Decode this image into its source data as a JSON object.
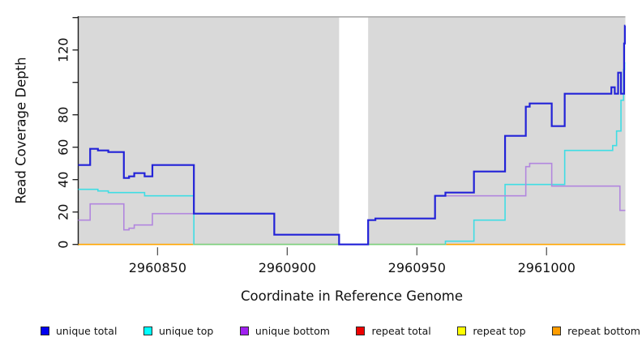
{
  "figure": {
    "xlabel": "Coordinate in Reference Genome",
    "ylabel": "Read Coverage Depth"
  },
  "chart_data": {
    "type": "line",
    "step": true,
    "title": "",
    "xlabel": "Coordinate in Reference Genome",
    "ylabel": "Read Coverage Depth",
    "xlim": [
      2960819.4,
      2961030.4
    ],
    "ylim": [
      0,
      140.85
    ],
    "background": "#D9D9D9",
    "grid": false,
    "legend_position": "bottom",
    "gap_region": {
      "x_start": 2960920,
      "x_end": 2960931.2
    },
    "x_ticks": [
      {
        "value": 2960850,
        "label": "2960850"
      },
      {
        "value": 2960900,
        "label": "2960900"
      },
      {
        "value": 2960950,
        "label": "2960950"
      },
      {
        "value": 2961000,
        "label": "2961000"
      }
    ],
    "y_ticks": [
      {
        "value": 0,
        "label": "0"
      },
      {
        "value": 20,
        "label": "20"
      },
      {
        "value": 40,
        "label": "40"
      },
      {
        "value": 60,
        "label": "60"
      },
      {
        "value": 80,
        "label": "80"
      },
      {
        "value": 100,
        "label": ""
      },
      {
        "value": 120,
        "label": "120"
      },
      {
        "value": 140,
        "label": ""
      }
    ],
    "series": [
      {
        "name": "repeat total",
        "key": "repeat-total",
        "color": "#E00000",
        "width": 1.5,
        "steps": [
          [
            2960819.4,
            0
          ]
        ]
      },
      {
        "name": "repeat top",
        "key": "repeat-top",
        "color": "#FFFF00",
        "width": 1.5,
        "steps": [
          [
            2960819.4,
            0
          ]
        ]
      },
      {
        "name": "repeat bottom",
        "key": "repeat-bottom",
        "color": "#FFA500",
        "width": 1.6,
        "steps": [
          [
            2960819.4,
            0
          ]
        ]
      },
      {
        "name": "unique top",
        "key": "unique-top",
        "color": "#3FDDE4",
        "width": 1.6,
        "zero_overlap_color": "#7CCF7C",
        "steps": [
          [
            2960819.4,
            34
          ],
          [
            2960827,
            33
          ],
          [
            2960831,
            32
          ],
          [
            2960845,
            30
          ],
          [
            2960864,
            0
          ],
          [
            2960961,
            2
          ],
          [
            2960972,
            15
          ],
          [
            2960984,
            37
          ],
          [
            2961007,
            58
          ],
          [
            2961025.5,
            61
          ],
          [
            2961027,
            70
          ],
          [
            2961028.7,
            89
          ],
          [
            2961029.7,
            108
          ],
          [
            2961030.1,
            112
          ]
        ]
      },
      {
        "name": "unique bottom",
        "key": "unique-bottom",
        "color": "#B287DE",
        "width": 1.6,
        "steps": [
          [
            2960819.4,
            15
          ],
          [
            2960824,
            25
          ],
          [
            2960837,
            9
          ],
          [
            2960839,
            10
          ],
          [
            2960841,
            12
          ],
          [
            2960848,
            19
          ],
          [
            2960895,
            6
          ],
          [
            2960920,
            0
          ],
          [
            2960931.2,
            15
          ],
          [
            2960934,
            16
          ],
          [
            2960957,
            30
          ],
          [
            2960992,
            48
          ],
          [
            2960993.5,
            50
          ],
          [
            2961002,
            36
          ],
          [
            2961028.3,
            21
          ]
        ]
      },
      {
        "name": "unique total",
        "key": "unique-total",
        "color": "#2222D8",
        "width": 2.2,
        "steps": [
          [
            2960819.4,
            49
          ],
          [
            2960824,
            59
          ],
          [
            2960827,
            58
          ],
          [
            2960831,
            57
          ],
          [
            2960837,
            41
          ],
          [
            2960839,
            42
          ],
          [
            2960841,
            44
          ],
          [
            2960845,
            42
          ],
          [
            2960848,
            49
          ],
          [
            2960864,
            19
          ],
          [
            2960895,
            6
          ],
          [
            2960920,
            0
          ],
          [
            2960931.2,
            15
          ],
          [
            2960934,
            16
          ],
          [
            2960957,
            30
          ],
          [
            2960961,
            32
          ],
          [
            2960972,
            45
          ],
          [
            2960984,
            67
          ],
          [
            2960992,
            85
          ],
          [
            2960993.5,
            87
          ],
          [
            2961002,
            73
          ],
          [
            2961007,
            93
          ],
          [
            2961025,
            97
          ],
          [
            2961026.3,
            93
          ],
          [
            2961027.6,
            106
          ],
          [
            2961028.7,
            93
          ],
          [
            2961029.9,
            124
          ],
          [
            2961030.2,
            135
          ]
        ]
      }
    ],
    "legend": [
      {
        "label": "unique total",
        "color": "#0000EE"
      },
      {
        "label": "unique top",
        "color": "#00FFFF"
      },
      {
        "label": "unique bottom",
        "color": "#A020F0"
      },
      {
        "label": "repeat total",
        "color": "#EE0000"
      },
      {
        "label": "repeat top",
        "color": "#FFFF00"
      },
      {
        "label": "repeat bottom",
        "color": "#FF9D00"
      }
    ]
  }
}
